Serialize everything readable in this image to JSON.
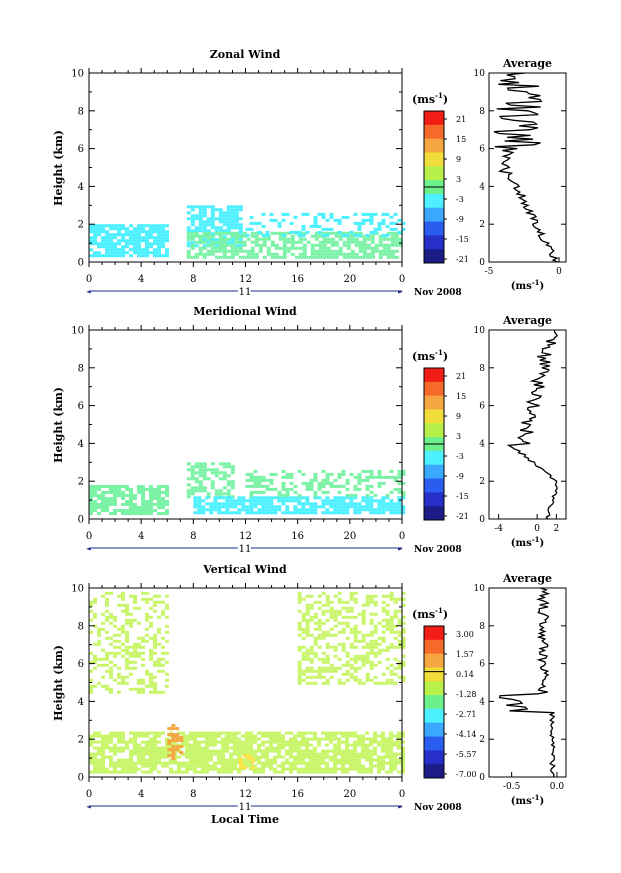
{
  "date_label": "Nov 2008",
  "day_label": "11",
  "xlabel": "Local Time",
  "x_ticks": [
    "0",
    "4",
    "8",
    "12",
    "16",
    "20",
    "0"
  ],
  "colors": {
    "cyan": "#4df0ff",
    "light_green": "#7cf2a6",
    "yellow_green": "#c8f56a",
    "orange": "#f5a640",
    "yellow": "#ffe24a"
  },
  "chart_data": [
    {
      "type": "heatmap",
      "title": "Zonal Wind",
      "ylabel": "Height (km)",
      "ylim": [
        0,
        10
      ],
      "y_ticks": [
        "0",
        "2",
        "4",
        "6",
        "8",
        "10"
      ],
      "xlim": [
        0,
        24
      ],
      "colorbar": {
        "unit": "(ms",
        "unit_exp": "-1",
        "labels": [
          "21",
          "15",
          "9",
          "3",
          "-3",
          "-9",
          "-15",
          "-21"
        ],
        "range": [
          -21,
          21
        ]
      },
      "average": {
        "title": "Average",
        "xlabel": "(ms",
        "xlabel_exp": "-1",
        "x_ticks": [
          "-5",
          "0"
        ],
        "xlim": [
          -5,
          0.5
        ],
        "ylim": [
          0,
          10
        ],
        "y_ticks": [
          "0",
          "2",
          "4",
          "6",
          "8",
          "10"
        ]
      }
    },
    {
      "type": "heatmap",
      "title": "Meridional Wind",
      "ylabel": "Height (km)",
      "ylim": [
        0,
        10
      ],
      "y_ticks": [
        "0",
        "2",
        "4",
        "6",
        "8",
        "10"
      ],
      "xlim": [
        0,
        24
      ],
      "colorbar": {
        "unit": "(ms",
        "unit_exp": "-1",
        "labels": [
          "21",
          "15",
          "9",
          "3",
          "-3",
          "-9",
          "-15",
          "-21"
        ],
        "range": [
          -21,
          21
        ]
      },
      "average": {
        "title": "Average",
        "xlabel": "(ms",
        "xlabel_exp": "-1",
        "x_ticks": [
          "-4",
          "0",
          "2"
        ],
        "xlim": [
          -5,
          3
        ],
        "ylim": [
          0,
          10
        ],
        "y_ticks": [
          "0",
          "2",
          "4",
          "6",
          "8",
          "10"
        ]
      }
    },
    {
      "type": "heatmap",
      "title": "Vertical Wind",
      "ylabel": "Height (km)",
      "ylim": [
        0,
        10
      ],
      "y_ticks": [
        "0",
        "2",
        "4",
        "6",
        "8",
        "10"
      ],
      "xlim": [
        0,
        24
      ],
      "colorbar": {
        "unit": "(ms",
        "unit_exp": "-1",
        "labels": [
          "3.00",
          "1.57",
          "0.14",
          "-1.28",
          "-2.71",
          "-4.14",
          "-5.57",
          "-7.00"
        ],
        "range": [
          -7,
          3
        ]
      },
      "average": {
        "title": "Average",
        "xlabel": "(ms",
        "xlabel_exp": "-1",
        "x_ticks": [
          "-0.5",
          "0.0"
        ],
        "xlim": [
          -0.75,
          0.1
        ],
        "ylim": [
          0,
          10
        ],
        "y_ticks": [
          "0",
          "2",
          "4",
          "6",
          "8",
          "10"
        ]
      }
    }
  ]
}
